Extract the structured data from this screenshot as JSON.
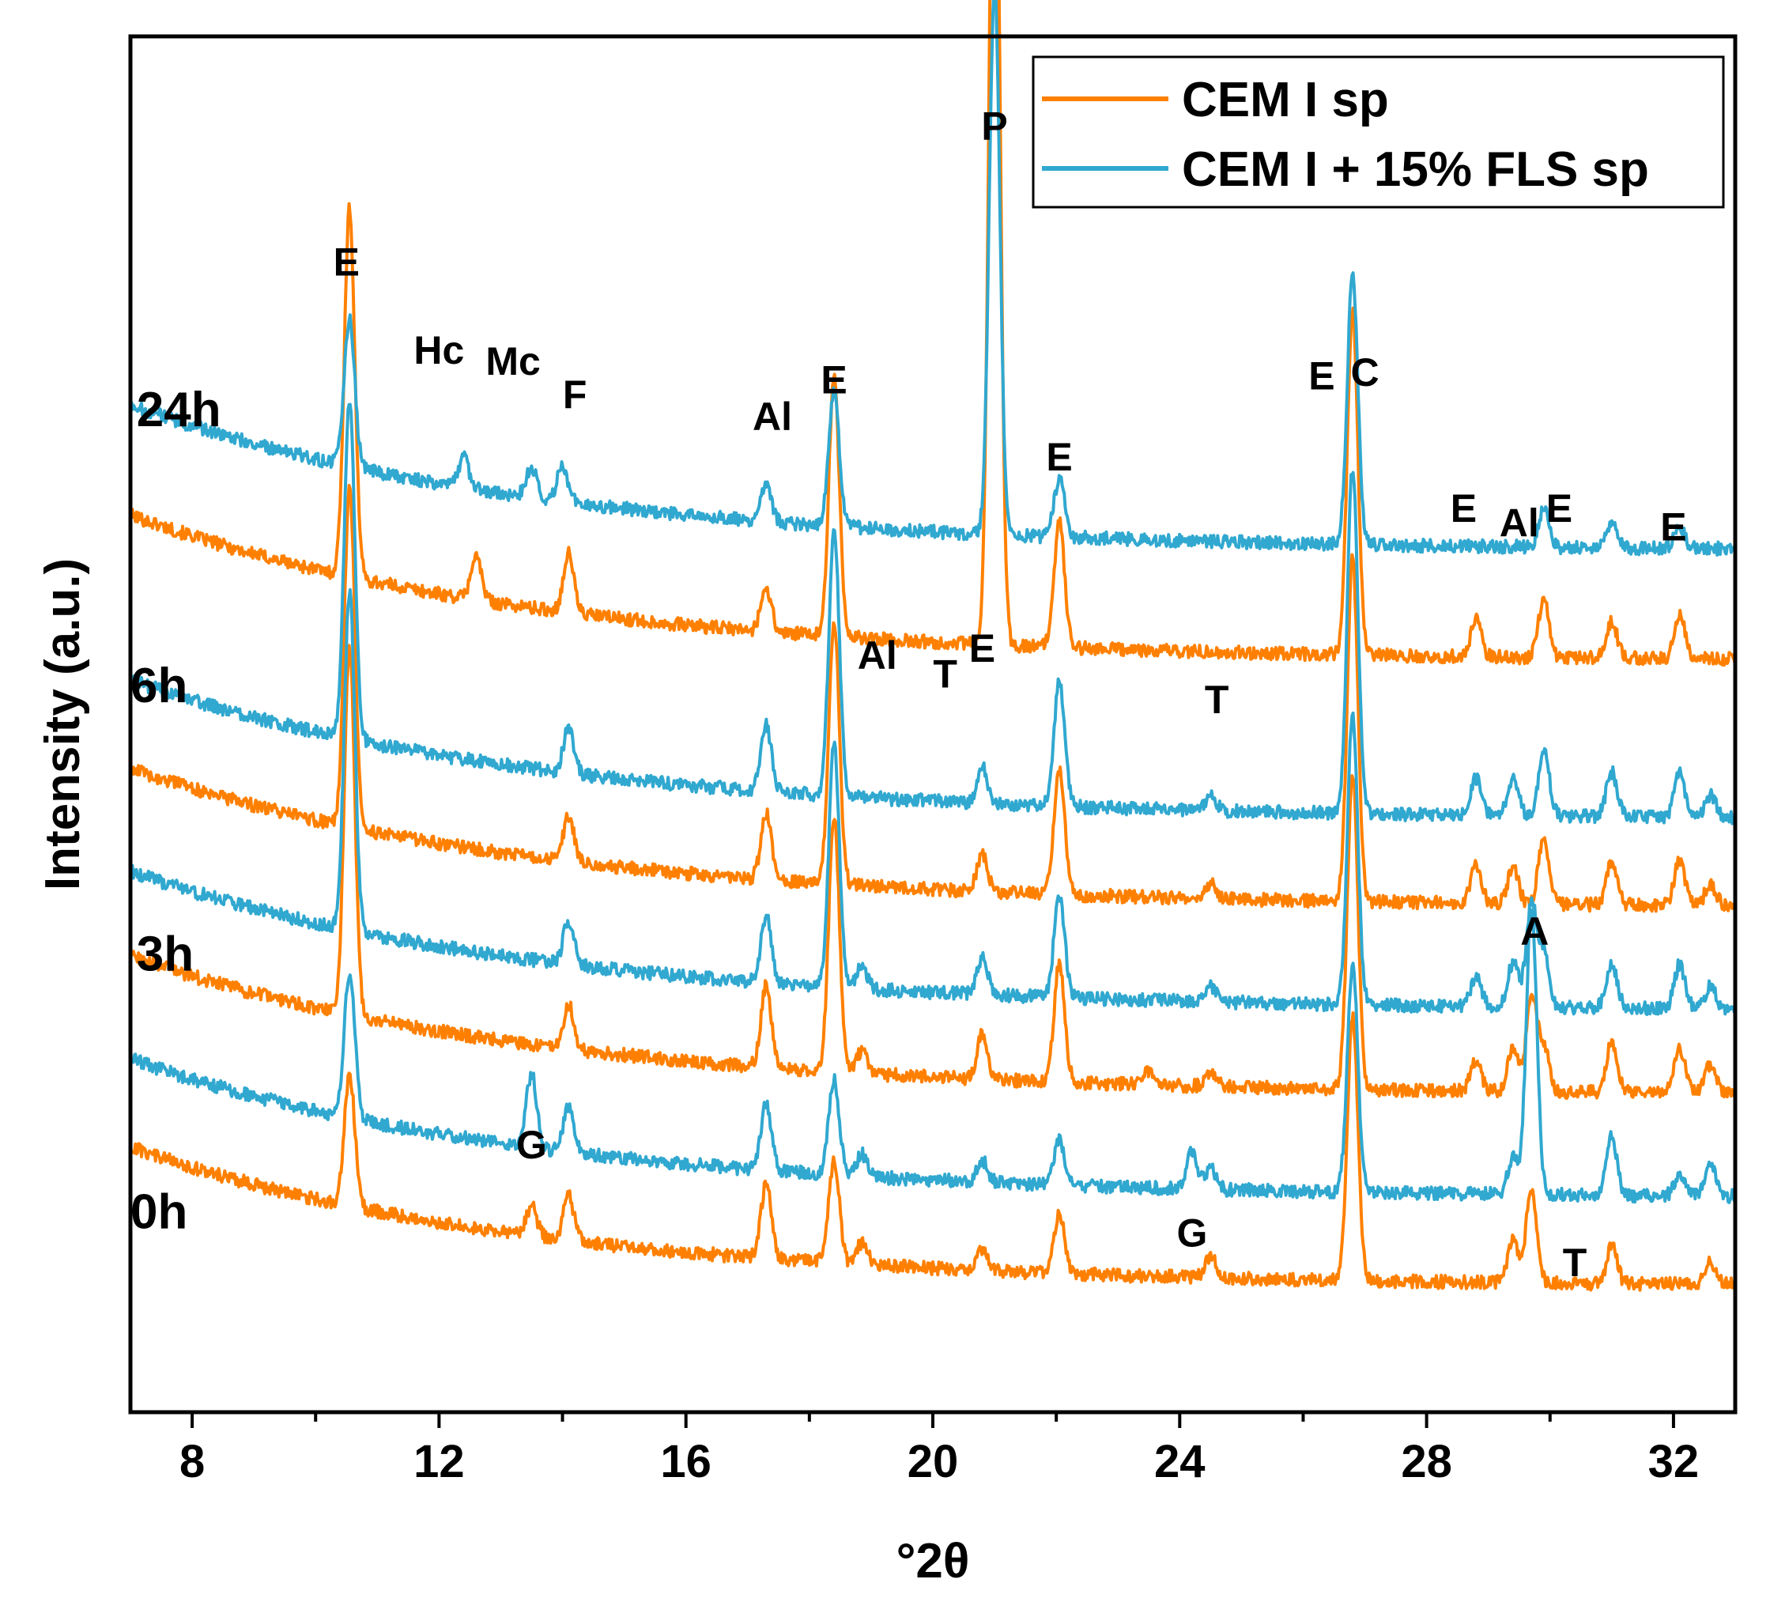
{
  "chart_data": {
    "type": "line",
    "title": "",
    "xlabel": "°2θ",
    "ylabel": "Intensity (a.u.)",
    "xlim": [
      7,
      33
    ],
    "xticks": [
      8,
      12,
      16,
      20,
      24,
      28,
      32
    ],
    "grid": false,
    "legend_position": "top-right",
    "legend": [
      {
        "name": "CEM I sp",
        "color": "#FF8000"
      },
      {
        "name": "CEM I + 15% FLS sp",
        "color": "#30A8D0"
      }
    ],
    "series": [
      {
        "name": "CEM I sp",
        "time": "24h",
        "color": "#FF8000",
        "offset": 7.5,
        "scale": 1.05,
        "peaks": [
          [
            10.55,
            5.0
          ],
          [
            12.6,
            0.6
          ],
          [
            14.1,
            0.8
          ],
          [
            17.3,
            0.6
          ],
          [
            18.4,
            3.5
          ],
          [
            21.0,
            13.0
          ],
          [
            22.05,
            1.7
          ],
          [
            26.8,
            4.7
          ],
          [
            28.8,
            0.5
          ],
          [
            29.9,
            0.8
          ],
          [
            31.0,
            0.5
          ],
          [
            32.1,
            0.6
          ]
        ]
      },
      {
        "name": "CEM I + 15% FLS sp",
        "time": "24h",
        "color": "#30A8D0",
        "offset": 9.0,
        "scale": 1.05,
        "peaks": [
          [
            10.55,
            2.0
          ],
          [
            12.4,
            0.4
          ],
          [
            13.5,
            0.4
          ],
          [
            14.0,
            0.5
          ],
          [
            17.3,
            0.5
          ],
          [
            18.4,
            1.8
          ],
          [
            21.0,
            7.5
          ],
          [
            22.05,
            0.8
          ],
          [
            26.8,
            3.7
          ],
          [
            29.9,
            0.5
          ],
          [
            31.0,
            0.3
          ],
          [
            32.1,
            0.3
          ]
        ]
      },
      {
        "name": "CEM I sp",
        "time": "6h",
        "color": "#FF8000",
        "offset": 4.15,
        "scale": 1.0,
        "peaks": [
          [
            10.55,
            4.6
          ],
          [
            14.1,
            0.6
          ],
          [
            17.3,
            0.9
          ],
          [
            18.4,
            3.6
          ],
          [
            20.8,
            0.5
          ],
          [
            22.05,
            1.7
          ],
          [
            24.5,
            0.2
          ],
          [
            26.8,
            4.7
          ],
          [
            28.8,
            0.5
          ],
          [
            29.4,
            0.5
          ],
          [
            29.9,
            0.9
          ],
          [
            31.0,
            0.6
          ],
          [
            32.1,
            0.6
          ],
          [
            32.6,
            0.3
          ]
        ]
      },
      {
        "name": "CEM I + 15% FLS sp",
        "time": "6h",
        "color": "#30A8D0",
        "offset": 5.35,
        "scale": 1.0,
        "peaks": [
          [
            10.55,
            4.6
          ],
          [
            14.1,
            0.6
          ],
          [
            17.3,
            0.9
          ],
          [
            18.4,
            3.6
          ],
          [
            20.8,
            0.5
          ],
          [
            22.05,
            1.7
          ],
          [
            24.5,
            0.2
          ],
          [
            26.8,
            4.7
          ],
          [
            28.8,
            0.5
          ],
          [
            29.4,
            0.5
          ],
          [
            29.9,
            0.9
          ],
          [
            31.0,
            0.6
          ],
          [
            32.1,
            0.6
          ],
          [
            32.6,
            0.3
          ]
        ]
      },
      {
        "name": "CEM I sp",
        "time": "3h",
        "color": "#FF8000",
        "offset": 1.6,
        "scale": 1.0,
        "peaks": [
          [
            10.55,
            5.0
          ],
          [
            14.1,
            0.6
          ],
          [
            17.3,
            1.1
          ],
          [
            18.4,
            3.5
          ],
          [
            18.85,
            0.3
          ],
          [
            20.8,
            0.6
          ],
          [
            22.05,
            1.6
          ],
          [
            23.5,
            0.2
          ],
          [
            24.5,
            0.2
          ],
          [
            26.8,
            4.3
          ],
          [
            28.8,
            0.4
          ],
          [
            29.4,
            0.6
          ],
          [
            29.7,
            1.3
          ],
          [
            29.9,
            0.6
          ],
          [
            31.0,
            0.7
          ],
          [
            32.1,
            0.6
          ],
          [
            32.6,
            0.4
          ]
        ]
      },
      {
        "name": "CEM I + 15% FLS sp",
        "time": "3h",
        "color": "#30A8D0",
        "offset": 2.75,
        "scale": 1.0,
        "peaks": [
          [
            10.55,
            4.6
          ],
          [
            14.1,
            0.6
          ],
          [
            17.3,
            0.9
          ],
          [
            18.4,
            3.3
          ],
          [
            18.85,
            0.3
          ],
          [
            20.8,
            0.5
          ],
          [
            22.05,
            1.4
          ],
          [
            24.5,
            0.2
          ],
          [
            26.8,
            3.9
          ],
          [
            28.8,
            0.4
          ],
          [
            29.4,
            0.6
          ],
          [
            29.7,
            1.4
          ],
          [
            29.9,
            0.7
          ],
          [
            31.0,
            0.6
          ],
          [
            32.1,
            0.6
          ],
          [
            32.6,
            0.3
          ]
        ]
      },
      {
        "name": "CEM I sp",
        "time": "0h",
        "color": "#FF8000",
        "offset": -1.0,
        "scale": 1.0,
        "peaks": [
          [
            10.55,
            1.8
          ],
          [
            13.5,
            0.4
          ],
          [
            14.1,
            0.6
          ],
          [
            17.3,
            1.0
          ],
          [
            18.4,
            1.4
          ],
          [
            18.85,
            0.3
          ],
          [
            20.8,
            0.3
          ],
          [
            22.05,
            0.8
          ],
          [
            24.5,
            0.3
          ],
          [
            26.8,
            3.6
          ],
          [
            29.4,
            0.6
          ],
          [
            29.7,
            1.3
          ],
          [
            31.0,
            0.5
          ],
          [
            32.6,
            0.3
          ]
        ]
      },
      {
        "name": "CEM I + 15% FLS sp",
        "time": "0h",
        "color": "#30A8D0",
        "offset": 0.2,
        "scale": 1.0,
        "peaks": [
          [
            10.55,
            2.0
          ],
          [
            13.5,
            1.0
          ],
          [
            14.1,
            0.6
          ],
          [
            17.3,
            0.9
          ],
          [
            18.4,
            1.3
          ],
          [
            18.85,
            0.3
          ],
          [
            20.8,
            0.3
          ],
          [
            22.05,
            0.6
          ],
          [
            24.2,
            0.5
          ],
          [
            24.5,
            0.3
          ],
          [
            26.8,
            3.1
          ],
          [
            29.4,
            0.5
          ],
          [
            29.7,
            3.9
          ],
          [
            31.0,
            0.8
          ],
          [
            32.1,
            0.3
          ],
          [
            32.6,
            0.4
          ]
        ]
      }
    ],
    "time_labels": [
      {
        "text": "24h",
        "x": 7.1,
        "y": 10.7
      },
      {
        "text": "6h",
        "x": 7.0,
        "y": 6.95
      },
      {
        "text": "3h",
        "x": 7.1,
        "y": 3.3
      },
      {
        "text": "0h",
        "x": 7.0,
        "y": -0.2
      }
    ],
    "annotations": [
      {
        "text": "E",
        "x": 10.5,
        "y": 12.75
      },
      {
        "text": "Hc",
        "x": 12.0,
        "y": 11.55
      },
      {
        "text": "Mc",
        "x": 13.2,
        "y": 11.4
      },
      {
        "text": "F",
        "x": 14.2,
        "y": 10.95
      },
      {
        "text": "Al",
        "x": 17.4,
        "y": 10.65
      },
      {
        "text": "E",
        "x": 18.4,
        "y": 11.15
      },
      {
        "text": "P",
        "x": 21.0,
        "y": 14.6
      },
      {
        "text": "E",
        "x": 22.05,
        "y": 10.1
      },
      {
        "text": "E",
        "x": 26.3,
        "y": 11.2
      },
      {
        "text": "C",
        "x": 27.0,
        "y": 11.25
      },
      {
        "text": "E",
        "x": 28.6,
        "y": 9.4
      },
      {
        "text": "Al",
        "x": 29.5,
        "y": 9.2
      },
      {
        "text": "E",
        "x": 30.15,
        "y": 9.4
      },
      {
        "text": "E",
        "x": 32.0,
        "y": 9.15
      },
      {
        "text": "Al",
        "x": 19.1,
        "y": 7.4
      },
      {
        "text": "T",
        "x": 20.2,
        "y": 7.15
      },
      {
        "text": "E",
        "x": 20.8,
        "y": 7.5
      },
      {
        "text": "T",
        "x": 24.6,
        "y": 6.8
      },
      {
        "text": "A",
        "x": 29.75,
        "y": 3.65
      },
      {
        "text": "G",
        "x": 13.5,
        "y": 0.75
      },
      {
        "text": "G",
        "x": 24.2,
        "y": -0.45
      },
      {
        "text": "T",
        "x": 30.4,
        "y": -0.85
      }
    ]
  }
}
